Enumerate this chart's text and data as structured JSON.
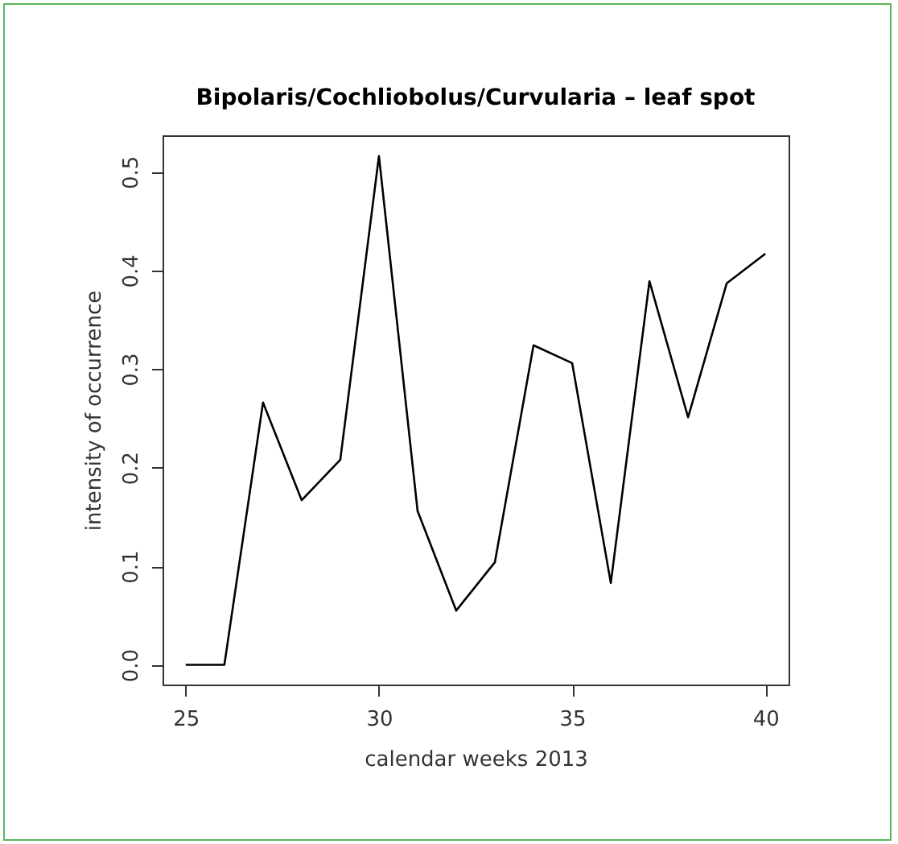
{
  "chart_data": {
    "type": "line",
    "title": "Bipolaris/Cochliobolus/Curvularia – leaf spot",
    "xlabel": "calendar weeks 2013",
    "ylabel": "intensity of occurrence",
    "x": [
      25,
      26,
      27,
      28,
      29,
      30,
      31,
      32,
      33,
      34,
      35,
      36,
      37,
      38,
      39,
      40
    ],
    "series": [
      {
        "color": "#000000",
        "values": [
          0,
          0,
          0.266,
          0.167,
          0.208,
          0.516,
          0.156,
          0.055,
          0.104,
          0.324,
          0.306,
          0.083,
          0.389,
          0.251,
          0.387,
          0.417
        ]
      }
    ],
    "xlim": [
      24.4,
      40.6
    ],
    "ylim": [
      -0.02,
      0.537
    ],
    "xticks": [
      25,
      30,
      35,
      40
    ],
    "yticks": [
      {
        "value": 0,
        "label": "0.0"
      },
      0.1,
      0.2,
      0.3,
      0.4,
      0.5
    ],
    "grid": false,
    "marker": "none",
    "line_style": "solid"
  }
}
